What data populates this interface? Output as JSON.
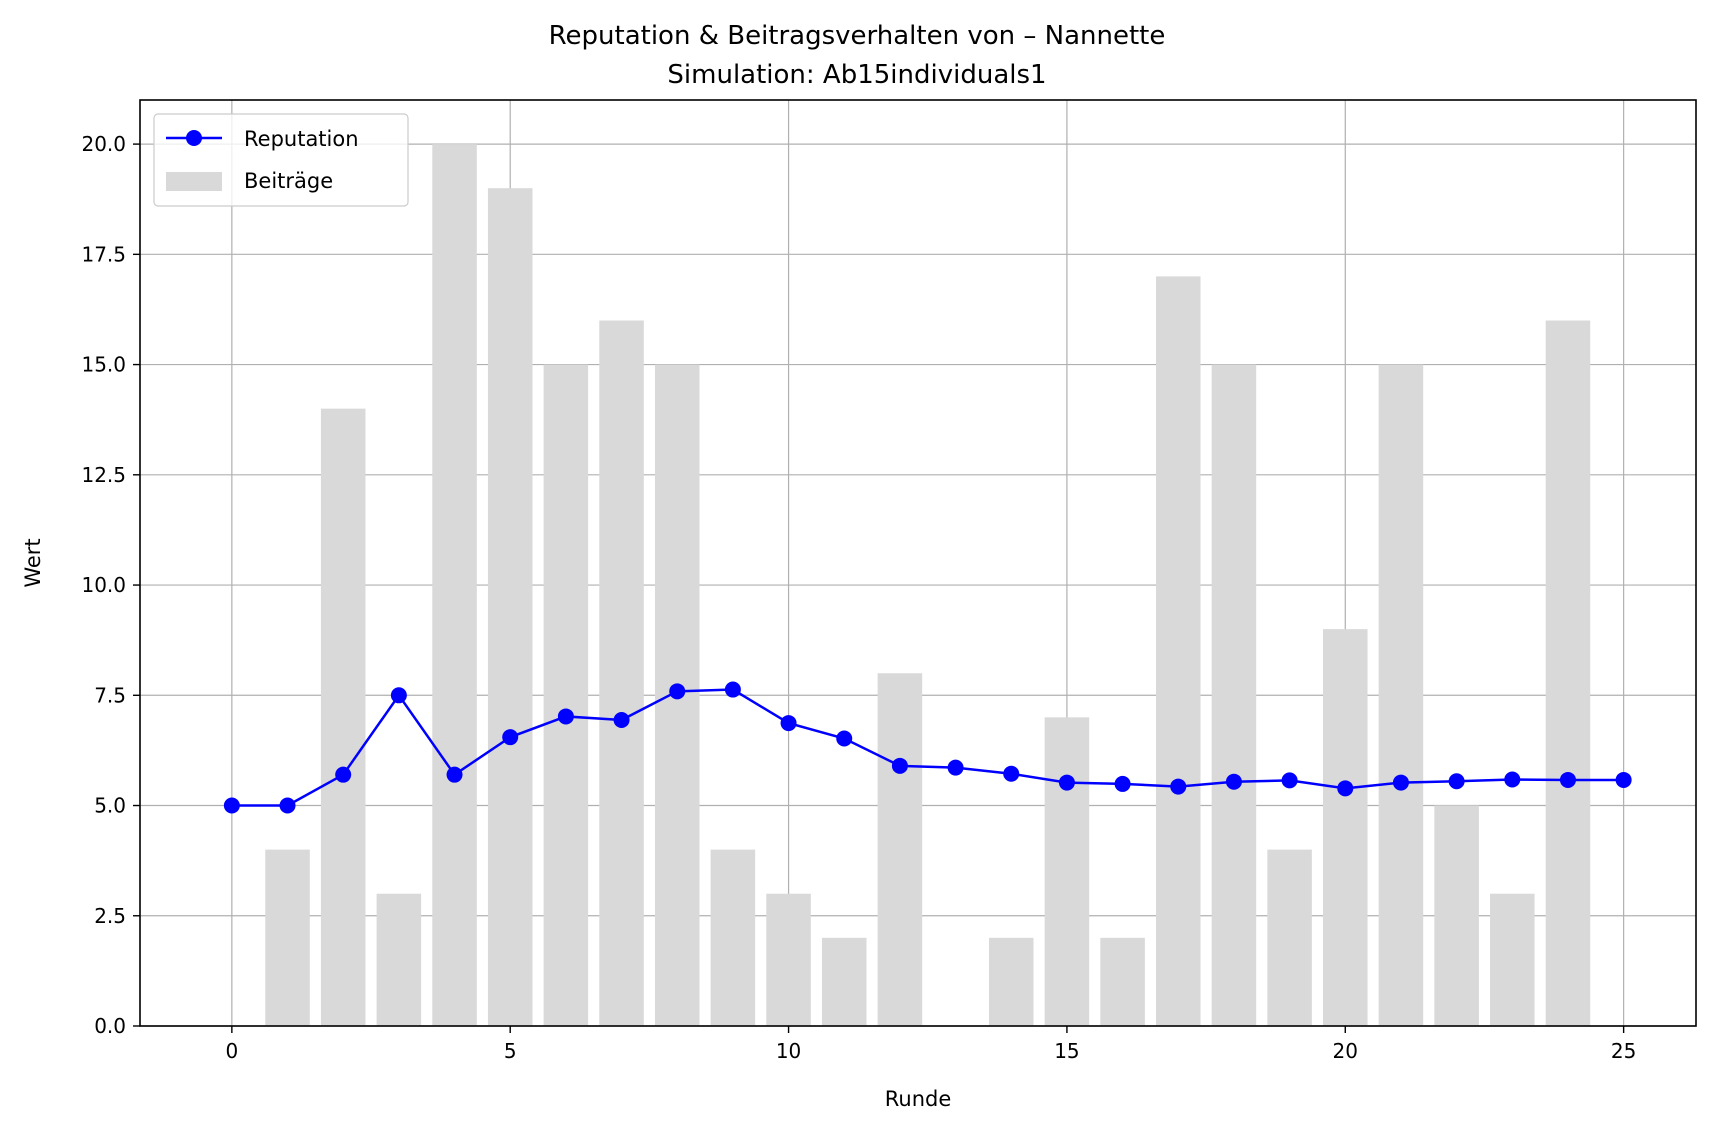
{
  "chart_data": {
    "type": "bar+line",
    "title": "Reputation & Beitragsverhalten von – Nannette",
    "subtitle": "Simulation: Ab15individuals1",
    "xlabel": "Runde",
    "ylabel": "Wert",
    "xlim": [
      -1.65,
      26.3
    ],
    "ylim": [
      0,
      21
    ],
    "xticks": [
      0,
      5,
      10,
      15,
      20,
      25
    ],
    "xtick_labels": [
      "0",
      "5",
      "10",
      "15",
      "20",
      "25"
    ],
    "yticks": [
      0,
      2.5,
      5,
      7.5,
      10,
      12.5,
      15,
      17.5,
      20
    ],
    "ytick_labels": [
      "0.0",
      "2.5",
      "5.0",
      "7.5",
      "10.0",
      "12.5",
      "15.0",
      "17.5",
      "20.0"
    ],
    "grid": true,
    "legend_position": "top-left",
    "series": [
      {
        "name": "Reputation",
        "kind": "line",
        "marker": "circle",
        "color": "#0000ff",
        "x": [
          0,
          1,
          2,
          3,
          4,
          5,
          6,
          7,
          8,
          9,
          10,
          11,
          12,
          13,
          14,
          15,
          16,
          17,
          18,
          19,
          20,
          21,
          22,
          23,
          24,
          25
        ],
        "values": [
          5.0,
          5.0,
          5.7,
          7.5,
          5.7,
          6.55,
          7.02,
          6.94,
          7.59,
          7.63,
          6.87,
          6.52,
          5.9,
          5.86,
          5.72,
          5.52,
          5.49,
          5.43,
          5.54,
          5.57,
          5.39,
          5.52,
          5.55,
          5.59,
          5.58,
          5.58
        ]
      },
      {
        "name": "Beiträge",
        "kind": "bar",
        "color": "#d9d9d9",
        "x": [
          1,
          2,
          3,
          4,
          5,
          6,
          7,
          8,
          9,
          10,
          11,
          12,
          14,
          15,
          16,
          17,
          18,
          19,
          20,
          21,
          22,
          23,
          24
        ],
        "values": [
          4,
          14,
          3,
          20,
          19,
          15,
          16,
          15,
          4,
          3,
          2,
          8,
          2,
          7,
          2,
          17,
          15,
          4,
          9,
          15,
          5,
          3,
          16
        ]
      }
    ]
  }
}
